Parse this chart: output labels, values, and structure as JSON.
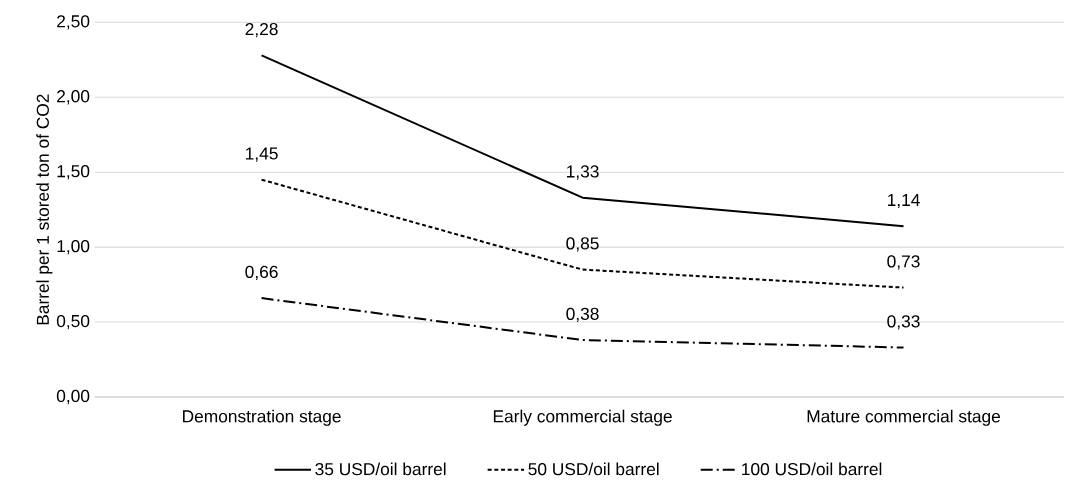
{
  "chart_data": {
    "type": "line",
    "ylabel": "Barrel per 1 stored ton of CO2",
    "categories": [
      "Demonstration stage",
      "Early commercial stage",
      "Mature commercial stage"
    ],
    "series": [
      {
        "name": "35 USD/oil barrel",
        "color": "#000000",
        "line_style": "solid",
        "values": [
          2.28,
          1.33,
          1.14
        ],
        "value_labels": [
          "2,28",
          "1,33",
          "1,14"
        ]
      },
      {
        "name": "50 USD/oil barrel",
        "color": "#000000",
        "line_style": "dashed",
        "values": [
          1.45,
          0.85,
          0.73
        ],
        "value_labels": [
          "1,45",
          "0,85",
          "0,73"
        ]
      },
      {
        "name": "100 USD/oil barrel",
        "color": "#000000",
        "line_style": "dashdot",
        "values": [
          0.66,
          0.38,
          0.33
        ],
        "value_labels": [
          "0,66",
          "0,38",
          "0,33"
        ]
      }
    ],
    "ylim": [
      0,
      2.5
    ],
    "yticks": [
      {
        "value": 0,
        "label": "0,00"
      },
      {
        "value": 0.5,
        "label": "0,50"
      },
      {
        "value": 1,
        "label": "1,00"
      },
      {
        "value": 1.5,
        "label": "1,50"
      },
      {
        "value": 2,
        "label": "2,00"
      },
      {
        "value": 2.5,
        "label": "2,50"
      }
    ],
    "grid": "y",
    "legend": "bottom"
  }
}
